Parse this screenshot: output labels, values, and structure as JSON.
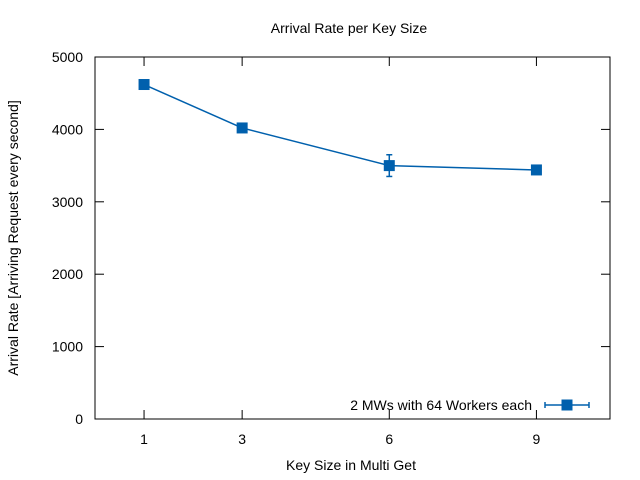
{
  "chart_data": {
    "type": "line",
    "title": "Arrival Rate per Key Size",
    "xlabel": "Key Size in Multi Get",
    "ylabel": "Arrival Rate [Arriving Request every second]",
    "xlim": [
      0.0,
      10.5
    ],
    "ylim": [
      0,
      5000
    ],
    "xticks": [
      1,
      3,
      6,
      9
    ],
    "yticks": [
      0,
      1000,
      2000,
      3000,
      4000,
      5000
    ],
    "grid": false,
    "legend_position": "bottom-right",
    "series": [
      {
        "name": "2 MWs with 64 Workers each",
        "color": "#0060ad",
        "marker": "square",
        "x": [
          1,
          3,
          6,
          9
        ],
        "y": [
          4620,
          4020,
          3500,
          3440
        ],
        "err": [
          20,
          20,
          150,
          20
        ]
      }
    ]
  }
}
